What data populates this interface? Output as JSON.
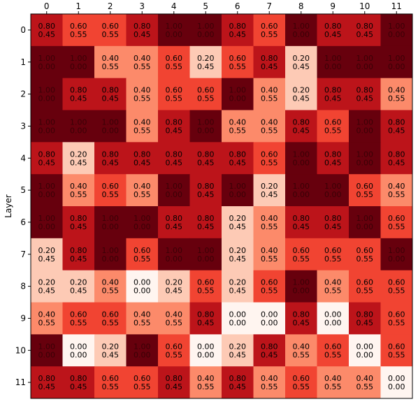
{
  "chart_data": {
    "type": "heatmap",
    "colormap": "Reds",
    "value_range": [
      0,
      1
    ],
    "xlabel": "",
    "ylabel": "Layer",
    "x_ticks": [
      "0",
      "1",
      "2",
      "3",
      "4",
      "5",
      "6",
      "7",
      "8",
      "9",
      "10",
      "11"
    ],
    "y_ticks": [
      "0",
      "1",
      "2",
      "3",
      "4",
      "5",
      "6",
      "7",
      "8",
      "9",
      "10",
      "11"
    ],
    "values": [
      [
        0.8,
        0.6,
        0.6,
        0.8,
        1.0,
        1.0,
        0.8,
        0.6,
        1.0,
        0.8,
        0.8,
        1.0
      ],
      [
        1.0,
        1.0,
        0.4,
        0.4,
        0.6,
        0.2,
        0.6,
        0.8,
        0.2,
        1.0,
        1.0,
        1.0
      ],
      [
        1.0,
        0.8,
        0.8,
        0.4,
        0.6,
        0.6,
        1.0,
        0.4,
        0.2,
        0.8,
        0.8,
        0.4
      ],
      [
        1.0,
        1.0,
        1.0,
        0.4,
        0.8,
        1.0,
        0.4,
        0.4,
        0.8,
        0.6,
        1.0,
        0.8
      ],
      [
        0.8,
        0.2,
        0.8,
        0.8,
        0.8,
        0.8,
        0.8,
        0.6,
        1.0,
        0.8,
        1.0,
        0.8
      ],
      [
        1.0,
        0.4,
        0.6,
        0.4,
        1.0,
        0.8,
        1.0,
        0.2,
        1.0,
        1.0,
        0.6,
        0.4
      ],
      [
        1.0,
        0.8,
        1.0,
        1.0,
        0.8,
        0.8,
        0.2,
        0.4,
        0.8,
        0.8,
        1.0,
        0.6
      ],
      [
        0.2,
        0.8,
        1.0,
        0.6,
        1.0,
        1.0,
        0.2,
        0.4,
        0.6,
        0.6,
        0.6,
        1.0
      ],
      [
        0.2,
        0.2,
        0.4,
        0.0,
        0.2,
        0.6,
        0.2,
        0.6,
        1.0,
        0.4,
        0.6,
        0.6
      ],
      [
        0.4,
        0.6,
        0.6,
        0.4,
        0.4,
        0.8,
        0.0,
        0.0,
        0.8,
        0.0,
        0.8,
        0.6
      ],
      [
        1.0,
        0.0,
        0.2,
        1.0,
        0.6,
        0.0,
        0.2,
        0.8,
        0.4,
        0.6,
        0.0,
        0.6
      ],
      [
        0.8,
        0.8,
        0.6,
        0.6,
        0.8,
        0.4,
        0.8,
        0.4,
        0.6,
        0.4,
        0.4,
        0.0
      ]
    ],
    "secondary_values": [
      [
        0.45,
        0.55,
        0.55,
        0.45,
        0.0,
        0.0,
        0.45,
        0.55,
        0.0,
        0.45,
        0.45,
        0.0
      ],
      [
        0.0,
        0.0,
        0.55,
        0.55,
        0.55,
        0.45,
        0.55,
        0.45,
        0.45,
        0.0,
        0.0,
        0.0
      ],
      [
        0.0,
        0.45,
        0.45,
        0.55,
        0.55,
        0.55,
        0.0,
        0.55,
        0.45,
        0.45,
        0.45,
        0.55
      ],
      [
        0.0,
        0.0,
        0.0,
        0.55,
        0.45,
        0.0,
        0.55,
        0.55,
        0.45,
        0.55,
        0.0,
        0.45
      ],
      [
        0.45,
        0.45,
        0.45,
        0.45,
        0.45,
        0.45,
        0.45,
        0.55,
        0.0,
        0.45,
        0.0,
        0.45
      ],
      [
        0.0,
        0.55,
        0.55,
        0.55,
        0.0,
        0.45,
        0.0,
        0.45,
        0.0,
        0.0,
        0.55,
        0.55
      ],
      [
        0.0,
        0.45,
        0.0,
        0.0,
        0.45,
        0.45,
        0.45,
        0.55,
        0.45,
        0.45,
        0.0,
        0.55
      ],
      [
        0.45,
        0.45,
        0.0,
        0.55,
        0.0,
        0.0,
        0.45,
        0.55,
        0.55,
        0.55,
        0.55,
        0.0
      ],
      [
        0.45,
        0.45,
        0.55,
        0.0,
        0.45,
        0.55,
        0.45,
        0.55,
        0.0,
        0.55,
        0.55,
        0.55
      ],
      [
        0.55,
        0.55,
        0.55,
        0.55,
        0.55,
        0.45,
        0.0,
        0.0,
        0.45,
        0.0,
        0.45,
        0.55
      ],
      [
        0.0,
        0.0,
        0.45,
        0.0,
        0.55,
        0.0,
        0.45,
        0.45,
        0.55,
        0.55,
        0.0,
        0.55
      ],
      [
        0.45,
        0.45,
        0.55,
        0.55,
        0.45,
        0.55,
        0.45,
        0.55,
        0.55,
        0.55,
        0.55,
        0.0
      ]
    ]
  }
}
